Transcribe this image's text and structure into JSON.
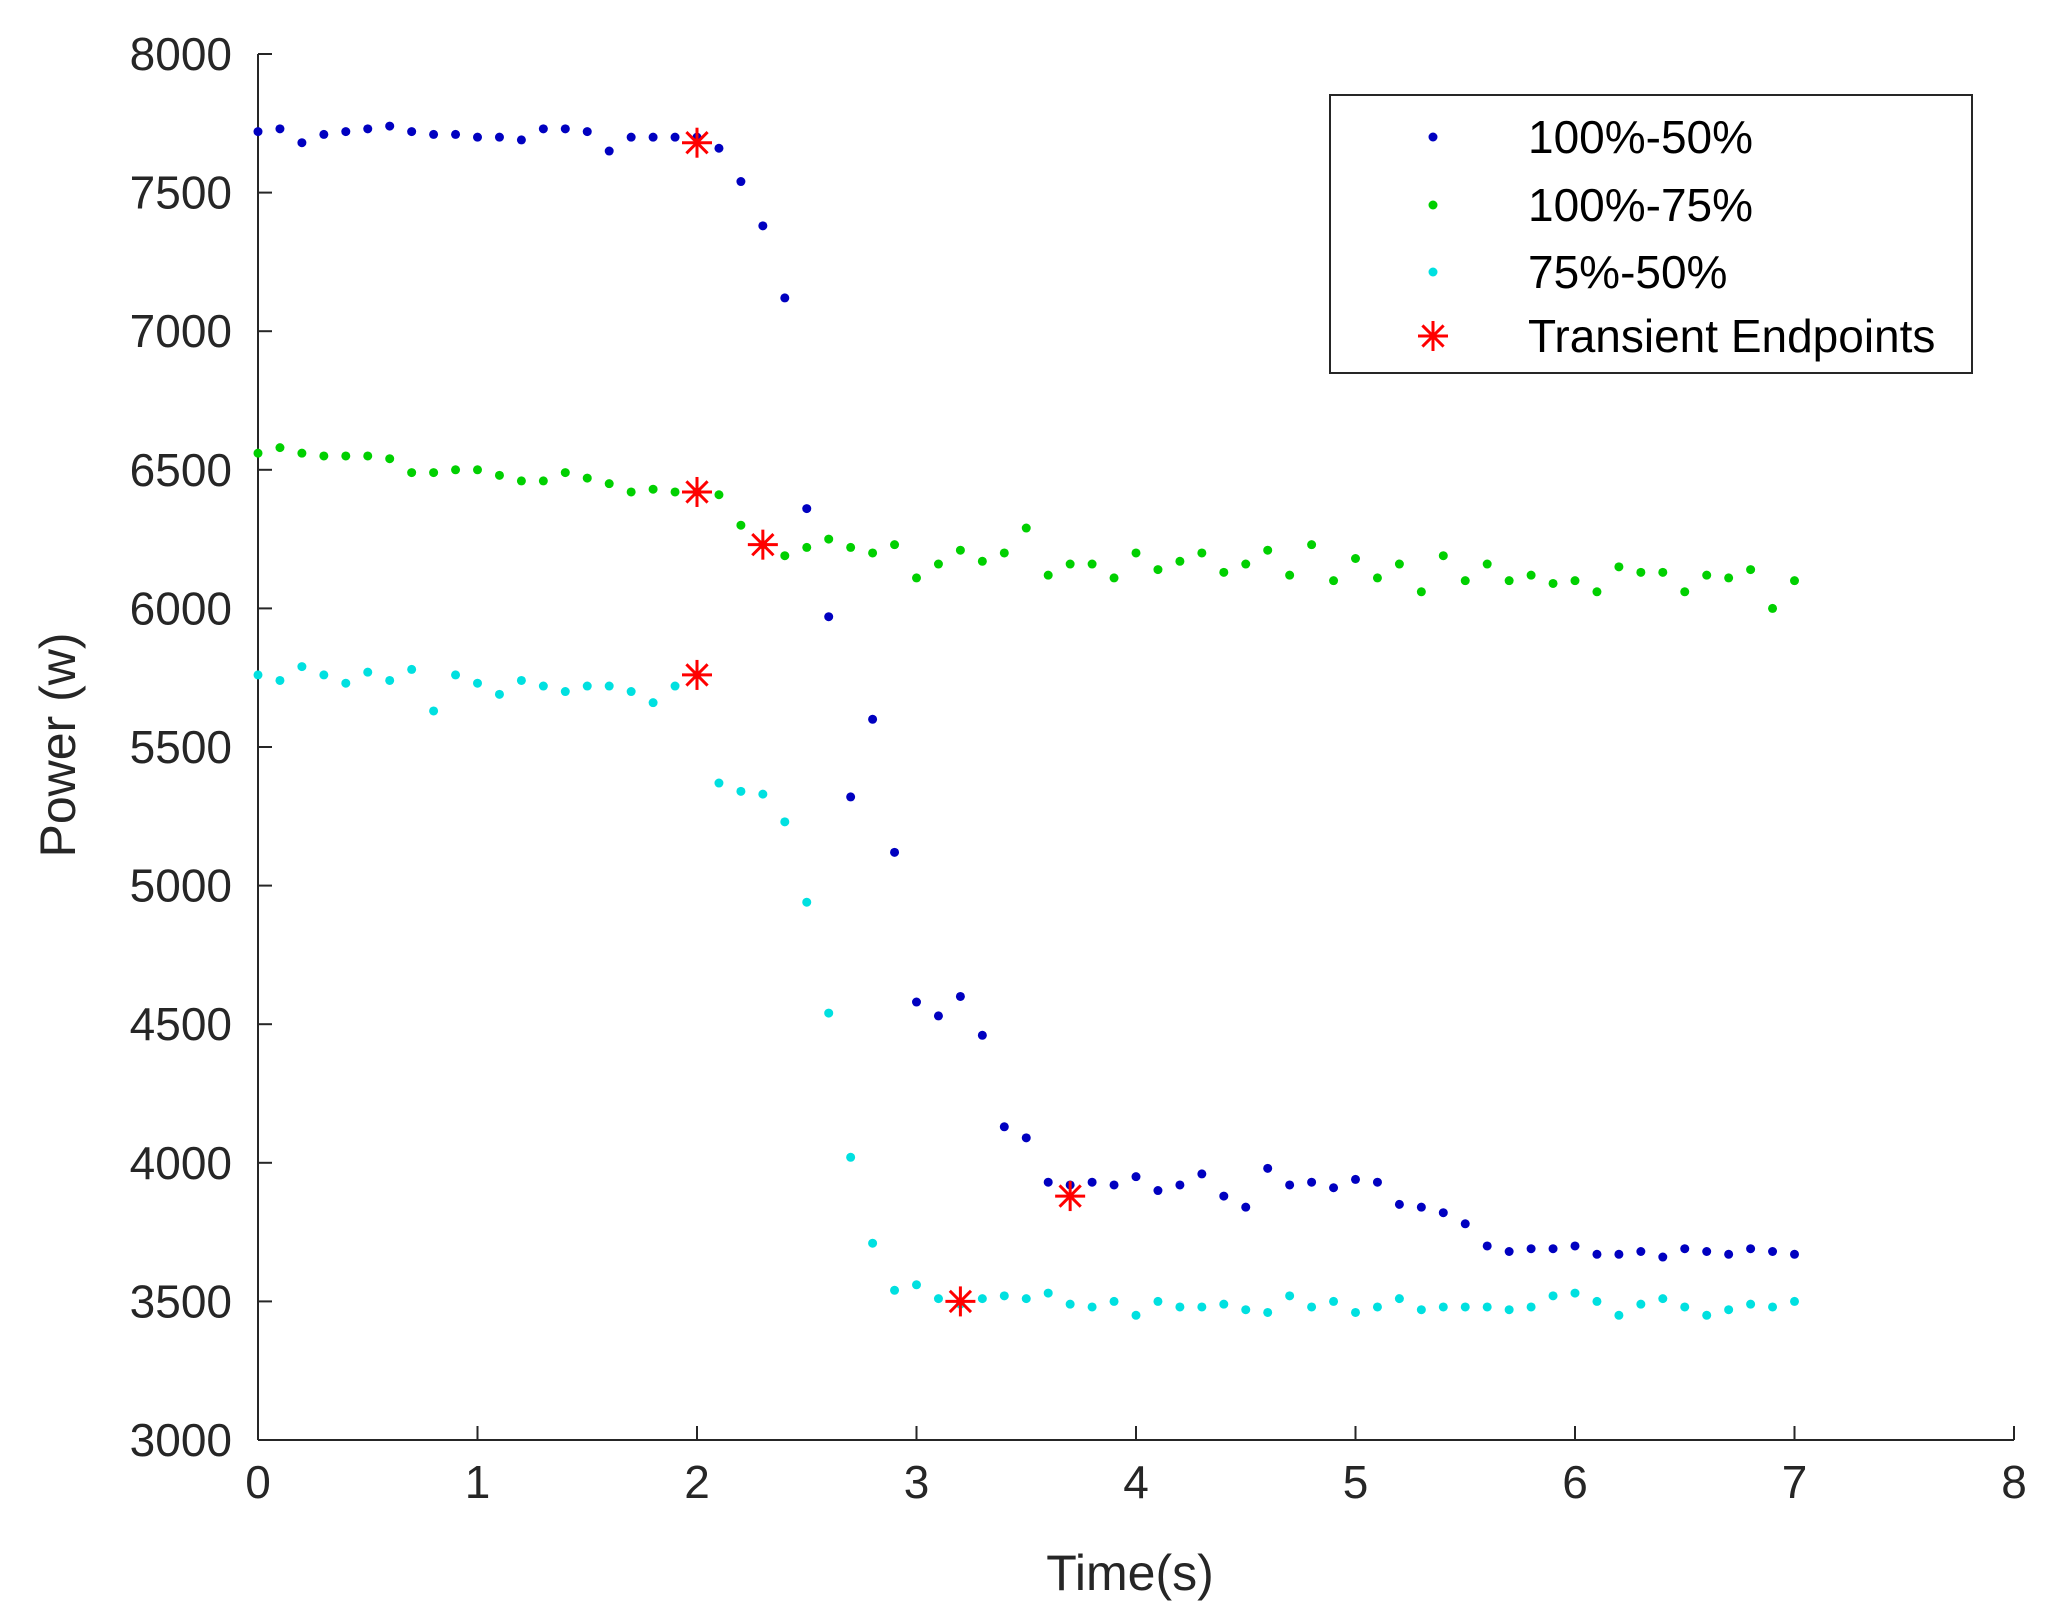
{
  "chart_data": {
    "type": "scatter",
    "title": "",
    "xlabel": "Time(s)",
    "ylabel": "Power (w)",
    "xlim": [
      0,
      8
    ],
    "ylim": [
      3000,
      8000
    ],
    "xticks": [
      0,
      1,
      2,
      3,
      4,
      5,
      6,
      7,
      8
    ],
    "yticks": [
      3000,
      3500,
      4000,
      4500,
      5000,
      5500,
      6000,
      6500,
      7000,
      7500,
      8000
    ],
    "grid": false,
    "legend_position": "top-right",
    "series": [
      {
        "name": "100%-50%",
        "marker": "dot",
        "color": "#0000c0",
        "x": [
          0,
          0.1,
          0.2,
          0.3,
          0.4,
          0.5,
          0.6,
          0.7,
          0.8,
          0.9,
          1.0,
          1.1,
          1.2,
          1.3,
          1.4,
          1.5,
          1.6,
          1.7,
          1.8,
          1.9,
          2.0,
          2.1,
          2.2,
          2.3,
          2.4,
          2.5,
          2.6,
          2.7,
          2.8,
          2.9,
          3.0,
          3.1,
          3.2,
          3.3,
          3.4,
          3.5,
          3.6,
          3.7,
          3.8,
          3.9,
          4.0,
          4.1,
          4.2,
          4.3,
          4.4,
          4.5,
          4.6,
          4.7,
          4.8,
          4.9,
          5.0,
          5.1,
          5.2,
          5.3,
          5.4,
          5.5,
          5.6,
          5.7,
          5.8,
          5.9,
          6.0,
          6.1,
          6.2,
          6.3,
          6.4,
          6.5,
          6.6,
          6.7,
          6.8,
          6.9,
          7.0
        ],
        "y": [
          7720,
          7730,
          7680,
          7710,
          7720,
          7730,
          7740,
          7720,
          7710,
          7710,
          7700,
          7700,
          7690,
          7730,
          7730,
          7720,
          7650,
          7700,
          7700,
          7700,
          7700,
          7660,
          7540,
          7380,
          7120,
          6360,
          5970,
          5320,
          5600,
          5120,
          4580,
          4530,
          4600,
          4460,
          4130,
          4090,
          3930,
          3920,
          3930,
          3920,
          3950,
          3900,
          3920,
          3960,
          3880,
          3840,
          3980,
          3920,
          3930,
          3910,
          3940,
          3930,
          3850,
          3840,
          3820,
          3780,
          3700,
          3680,
          3690,
          3690,
          3700,
          3670,
          3670,
          3680,
          3660,
          3690,
          3680,
          3670,
          3690,
          3680,
          3670
        ]
      },
      {
        "name": "100%-75%",
        "marker": "dot",
        "color": "#00d000",
        "x": [
          0,
          0.1,
          0.2,
          0.3,
          0.4,
          0.5,
          0.6,
          0.7,
          0.8,
          0.9,
          1.0,
          1.1,
          1.2,
          1.3,
          1.4,
          1.5,
          1.6,
          1.7,
          1.8,
          1.9,
          2.0,
          2.1,
          2.2,
          2.3,
          2.4,
          2.5,
          2.6,
          2.7,
          2.8,
          2.9,
          3.0,
          3.1,
          3.2,
          3.3,
          3.4,
          3.5,
          3.6,
          3.7,
          3.8,
          3.9,
          4.0,
          4.1,
          4.2,
          4.3,
          4.4,
          4.5,
          4.6,
          4.7,
          4.8,
          4.9,
          5.0,
          5.1,
          5.2,
          5.3,
          5.4,
          5.5,
          5.6,
          5.7,
          5.8,
          5.9,
          6.0,
          6.1,
          6.2,
          6.3,
          6.4,
          6.5,
          6.6,
          6.7,
          6.8,
          6.9,
          7.0
        ],
        "y": [
          6560,
          6580,
          6560,
          6550,
          6550,
          6550,
          6540,
          6490,
          6490,
          6500,
          6500,
          6480,
          6460,
          6460,
          6490,
          6470,
          6450,
          6420,
          6430,
          6420,
          6420,
          6410,
          6300,
          6230,
          6190,
          6220,
          6250,
          6220,
          6200,
          6230,
          6110,
          6160,
          6210,
          6170,
          6200,
          6290,
          6120,
          6160,
          6160,
          6110,
          6200,
          6140,
          6170,
          6200,
          6130,
          6160,
          6210,
          6120,
          6230,
          6100,
          6180,
          6110,
          6160,
          6060,
          6190,
          6100,
          6160,
          6100,
          6120,
          6090,
          6100,
          6060,
          6150,
          6130,
          6130,
          6060,
          6120,
          6110,
          6140,
          6000,
          6100
        ]
      },
      {
        "name": "75%-50%",
        "marker": "dot",
        "color": "#00e0e0",
        "x": [
          0,
          0.1,
          0.2,
          0.3,
          0.4,
          0.5,
          0.6,
          0.7,
          0.8,
          0.9,
          1.0,
          1.1,
          1.2,
          1.3,
          1.4,
          1.5,
          1.6,
          1.7,
          1.8,
          1.9,
          2.0,
          2.1,
          2.2,
          2.3,
          2.4,
          2.5,
          2.6,
          2.7,
          2.8,
          2.9,
          3.0,
          3.1,
          3.2,
          3.3,
          3.4,
          3.5,
          3.6,
          3.7,
          3.8,
          3.9,
          4.0,
          4.1,
          4.2,
          4.3,
          4.4,
          4.5,
          4.6,
          4.7,
          4.8,
          4.9,
          5.0,
          5.1,
          5.2,
          5.3,
          5.4,
          5.5,
          5.6,
          5.7,
          5.8,
          5.9,
          6.0,
          6.1,
          6.2,
          6.3,
          6.4,
          6.5,
          6.6,
          6.7,
          6.8,
          6.9,
          7.0
        ],
        "y": [
          5760,
          5740,
          5790,
          5760,
          5730,
          5770,
          5740,
          5780,
          5630,
          5760,
          5730,
          5690,
          5740,
          5720,
          5700,
          5720,
          5720,
          5700,
          5660,
          5720,
          5760,
          5370,
          5340,
          5330,
          5230,
          4940,
          4540,
          4020,
          3710,
          3540,
          3560,
          3510,
          3490,
          3510,
          3520,
          3510,
          3530,
          3490,
          3480,
          3500,
          3450,
          3500,
          3480,
          3480,
          3490,
          3470,
          3460,
          3520,
          3480,
          3500,
          3460,
          3480,
          3510,
          3470,
          3480,
          3480,
          3480,
          3470,
          3480,
          3520,
          3530,
          3500,
          3450,
          3490,
          3510,
          3480,
          3450,
          3470,
          3490,
          3480,
          3500
        ]
      },
      {
        "name": "Transient Endpoints",
        "marker": "asterisk",
        "color": "#ff0000",
        "x": [
          2.0,
          2.0,
          2.0,
          2.3,
          3.2,
          3.7
        ],
        "y": [
          7680,
          6420,
          5760,
          6230,
          3500,
          3880
        ]
      }
    ]
  }
}
